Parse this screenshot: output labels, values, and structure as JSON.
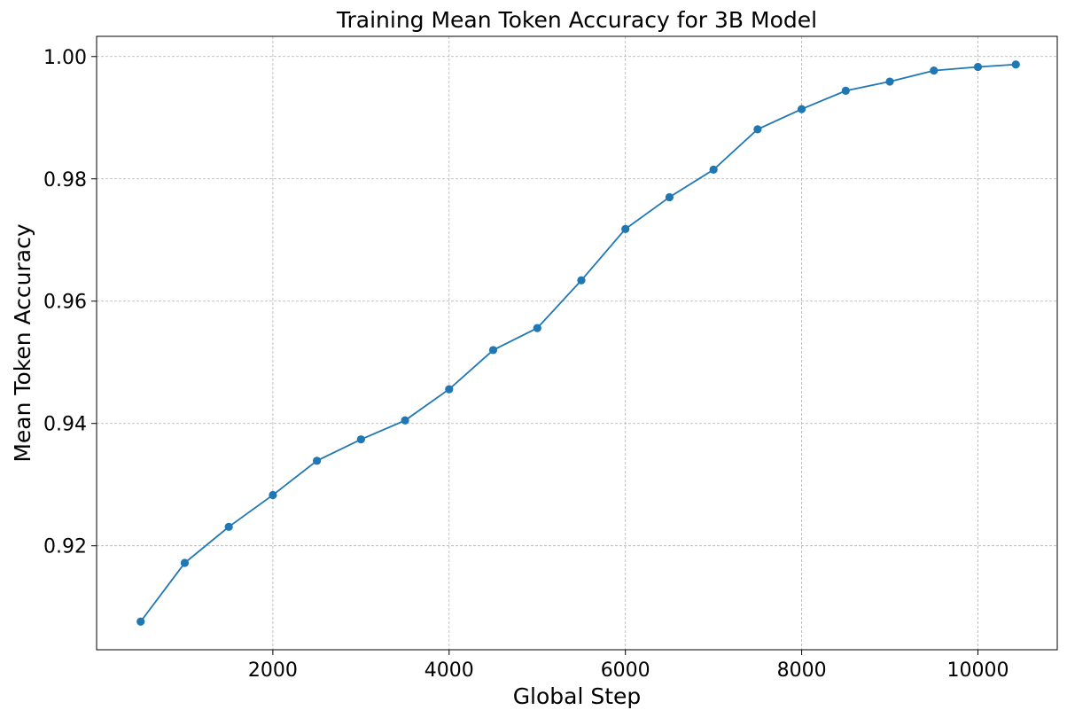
{
  "chart_data": {
    "type": "line",
    "title": "Training Mean Token Accuracy for 3B Model",
    "xlabel": "Global Step",
    "ylabel": "Mean Token Accuracy",
    "xlim": [
      0,
      10900
    ],
    "ylim": [
      0.903,
      1.0033
    ],
    "xticks": [
      2000,
      4000,
      6000,
      8000,
      10000
    ],
    "xtick_labels": [
      "2000",
      "4000",
      "6000",
      "8000",
      "10000"
    ],
    "yticks": [
      0.92,
      0.94,
      0.96,
      0.98,
      1.0
    ],
    "ytick_labels": [
      "0.92",
      "0.94",
      "0.96",
      "0.98",
      "1.00"
    ],
    "grid": true,
    "color": "#1f77b4",
    "series": [
      {
        "x": [
          500,
          1000,
          1500,
          2000,
          2500,
          3000,
          3500,
          4000,
          4500,
          5000,
          5500,
          6000,
          6500,
          7000,
          7500,
          8000,
          8500,
          9000,
          9500,
          10000,
          10430
        ],
        "y": [
          0.9076,
          0.9172,
          0.9231,
          0.9283,
          0.9339,
          0.9374,
          0.9405,
          0.9456,
          0.952,
          0.9556,
          0.9634,
          0.9718,
          0.977,
          0.9815,
          0.9881,
          0.9914,
          0.9944,
          0.9959,
          0.9977,
          0.9983,
          0.9987
        ]
      }
    ]
  }
}
